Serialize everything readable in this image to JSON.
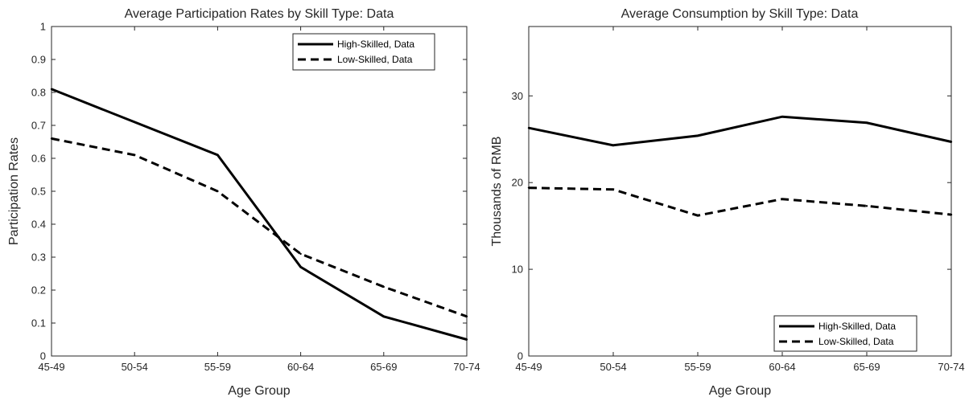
{
  "colors": {
    "axis": "#262626",
    "line": "#000000",
    "background": "#ffffff"
  },
  "chart_data": [
    {
      "type": "line",
      "title": "Average Participation Rates by Skill Type: Data",
      "xlabel": "Age Group",
      "ylabel": "Participation Rates",
      "categories": [
        "45-49",
        "50-54",
        "55-59",
        "60-64",
        "65-69",
        "70-74"
      ],
      "ylim": [
        0,
        1
      ],
      "yticks": [
        "0",
        "0.1",
        "0.2",
        "0.3",
        "0.4",
        "0.5",
        "0.6",
        "0.7",
        "0.8",
        "0.9",
        "1"
      ],
      "grid": false,
      "legend": "top-right",
      "series": [
        {
          "name": "High-Skilled, Data",
          "style": "solid",
          "values": [
            0.81,
            0.71,
            0.61,
            0.27,
            0.12,
            0.05
          ]
        },
        {
          "name": "Low-Skilled, Data",
          "style": "dashed",
          "values": [
            0.66,
            0.61,
            0.5,
            0.31,
            0.21,
            0.12
          ]
        }
      ]
    },
    {
      "type": "line",
      "title": "Average Consumption by Skill Type: Data",
      "xlabel": "Age Group",
      "ylabel": "Thousands of RMB",
      "categories": [
        "45-49",
        "50-54",
        "55-59",
        "60-64",
        "65-69",
        "70-74"
      ],
      "ylim": [
        0,
        38
      ],
      "yticks": [
        "0",
        "10",
        "20",
        "30"
      ],
      "grid": false,
      "legend": "bottom-right",
      "series": [
        {
          "name": "High-Skilled, Data",
          "style": "solid",
          "values": [
            26.3,
            24.3,
            25.4,
            27.6,
            26.9,
            24.7
          ]
        },
        {
          "name": "Low-Skilled, Data",
          "style": "dashed",
          "values": [
            19.4,
            19.2,
            16.2,
            18.1,
            17.3,
            16.3
          ]
        }
      ]
    }
  ]
}
